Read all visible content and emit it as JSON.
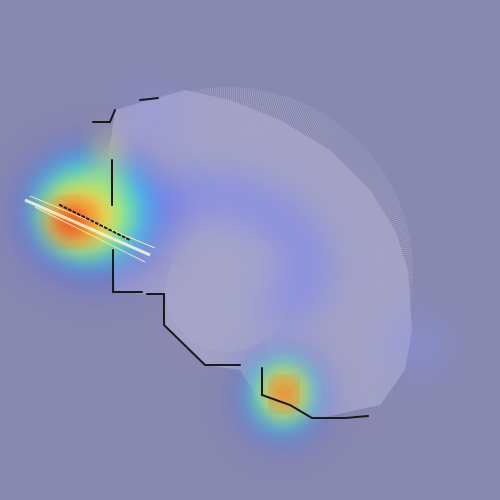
{
  "colors": {
    "background": "#8888b0",
    "explored_area": "#a6a5c9",
    "scan_rays": "#c8c8e2",
    "obstacle": "#1a1a1a",
    "heatmap_scale": [
      "#3a4cff",
      "#22c8ff",
      "#7cff8a",
      "#ffe24a",
      "#ff8a2a",
      "#e0201e"
    ]
  },
  "heatmap": {
    "hotspots": [
      {
        "name": "hotspot-left",
        "intensity": 1.0
      },
      {
        "name": "hotspot-bottom",
        "intensity": 0.95
      },
      {
        "name": "glow-inner-arc",
        "intensity": 0.35
      }
    ]
  }
}
